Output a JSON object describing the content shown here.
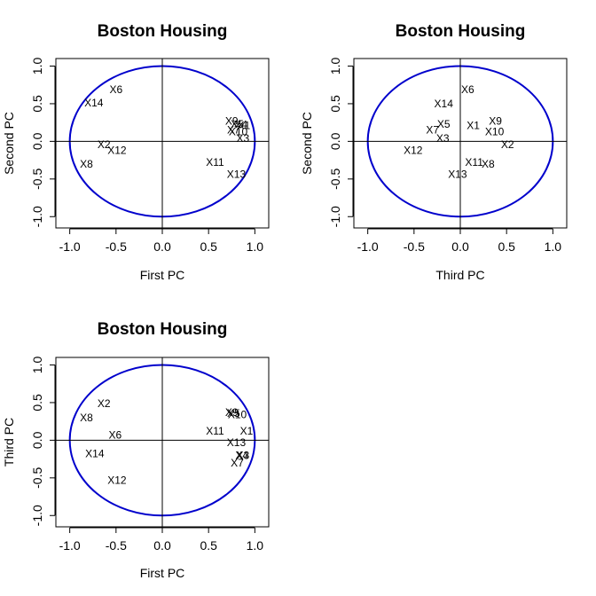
{
  "colors": {
    "circle": "#0000cc",
    "axis": "#000000",
    "background": "#ffffff"
  },
  "chart_data": [
    {
      "type": "scatter",
      "title": "Boston Housing",
      "xlabel": "First PC",
      "ylabel": "Second PC",
      "xlim": [
        -1.15,
        1.15
      ],
      "ylim": [
        -1.15,
        1.1
      ],
      "xticks": [
        -1.0,
        -0.5,
        0.0,
        0.5,
        1.0
      ],
      "xtick_labels": [
        "-1.0",
        "-0.5",
        "0.0",
        "0.5",
        "1.0"
      ],
      "yticks": [
        -1.0,
        -0.5,
        0.0,
        0.5,
        1.0
      ],
      "ytick_labels": [
        "-1.0",
        "-0.5",
        "0.0",
        "0.5",
        "1.0"
      ],
      "unit_circle": true,
      "reference_lines": [
        0,
        0
      ],
      "points": [
        {
          "label": "X6",
          "x": -0.5,
          "y": 0.69
        },
        {
          "label": "X14",
          "x": -0.74,
          "y": 0.51
        },
        {
          "label": "X2",
          "x": -0.63,
          "y": -0.04
        },
        {
          "label": "X12",
          "x": -0.49,
          "y": -0.12
        },
        {
          "label": "X8",
          "x": -0.82,
          "y": -0.3
        },
        {
          "label": "X9",
          "x": 0.75,
          "y": 0.27
        },
        {
          "label": "X5",
          "x": 0.81,
          "y": 0.23
        },
        {
          "label": "X4",
          "x": 0.85,
          "y": 0.22
        },
        {
          "label": "X1",
          "x": 0.88,
          "y": 0.21
        },
        {
          "label": "X7",
          "x": 0.77,
          "y": 0.15
        },
        {
          "label": "X10",
          "x": 0.82,
          "y": 0.13
        },
        {
          "label": "X3",
          "x": 0.87,
          "y": 0.04
        },
        {
          "label": "X11",
          "x": 0.57,
          "y": -0.28
        },
        {
          "label": "X13",
          "x": 0.8,
          "y": -0.44
        }
      ]
    },
    {
      "type": "scatter",
      "title": "Boston Housing",
      "xlabel": "Third PC",
      "ylabel": "Second PC",
      "xlim": [
        -1.15,
        1.15
      ],
      "ylim": [
        -1.15,
        1.1
      ],
      "xticks": [
        -1.0,
        -0.5,
        0.0,
        0.5,
        1.0
      ],
      "xtick_labels": [
        "-1.0",
        "-0.5",
        "0.0",
        "0.5",
        "1.0"
      ],
      "yticks": [
        -1.0,
        -0.5,
        0.0,
        0.5,
        1.0
      ],
      "ytick_labels": [
        "-1.0",
        "-0.5",
        "0.0",
        "0.5",
        "1.0"
      ],
      "unit_circle": true,
      "reference_lines": [
        0,
        0
      ],
      "points": [
        {
          "label": "X6",
          "x": 0.08,
          "y": 0.69
        },
        {
          "label": "X14",
          "x": -0.18,
          "y": 0.5
        },
        {
          "label": "X9",
          "x": 0.38,
          "y": 0.27
        },
        {
          "label": "X5",
          "x": -0.18,
          "y": 0.23
        },
        {
          "label": "X1",
          "x": 0.14,
          "y": 0.21
        },
        {
          "label": "X7",
          "x": -0.3,
          "y": 0.15
        },
        {
          "label": "X10",
          "x": 0.37,
          "y": 0.13
        },
        {
          "label": "X3",
          "x": -0.19,
          "y": 0.04
        },
        {
          "label": "X2",
          "x": 0.51,
          "y": -0.04
        },
        {
          "label": "X12",
          "x": -0.51,
          "y": -0.12
        },
        {
          "label": "X11",
          "x": 0.15,
          "y": -0.28
        },
        {
          "label": "X8",
          "x": 0.3,
          "y": -0.3
        },
        {
          "label": "X13",
          "x": -0.03,
          "y": -0.44
        }
      ]
    },
    {
      "type": "scatter",
      "title": "Boston Housing",
      "xlabel": "First PC",
      "ylabel": "Third PC",
      "xlim": [
        -1.15,
        1.15
      ],
      "ylim": [
        -1.15,
        1.1
      ],
      "xticks": [
        -1.0,
        -0.5,
        0.0,
        0.5,
        1.0
      ],
      "xtick_labels": [
        "-1.0",
        "-0.5",
        "0.0",
        "0.5",
        "1.0"
      ],
      "yticks": [
        -1.0,
        -0.5,
        0.0,
        0.5,
        1.0
      ],
      "ytick_labels": [
        "-1.0",
        "-0.5",
        "0.0",
        "0.5",
        "1.0"
      ],
      "unit_circle": true,
      "reference_lines": [
        0,
        0
      ],
      "points": [
        {
          "label": "X2",
          "x": -0.63,
          "y": 0.49
        },
        {
          "label": "X8",
          "x": -0.82,
          "y": 0.3
        },
        {
          "label": "X6",
          "x": -0.51,
          "y": 0.07
        },
        {
          "label": "X14",
          "x": -0.73,
          "y": -0.18
        },
        {
          "label": "X12",
          "x": -0.49,
          "y": -0.53
        },
        {
          "label": "X9",
          "x": 0.75,
          "y": 0.37
        },
        {
          "label": "X5",
          "x": 0.77,
          "y": 0.36
        },
        {
          "label": "X10",
          "x": 0.81,
          "y": 0.34
        },
        {
          "label": "X11",
          "x": 0.57,
          "y": 0.12
        },
        {
          "label": "X1",
          "x": 0.91,
          "y": 0.12
        },
        {
          "label": "X13",
          "x": 0.8,
          "y": -0.03
        },
        {
          "label": "X4",
          "x": 0.86,
          "y": -0.2
        },
        {
          "label": "X3",
          "x": 0.87,
          "y": -0.2
        },
        {
          "label": "X7",
          "x": 0.81,
          "y": -0.3
        }
      ]
    }
  ]
}
